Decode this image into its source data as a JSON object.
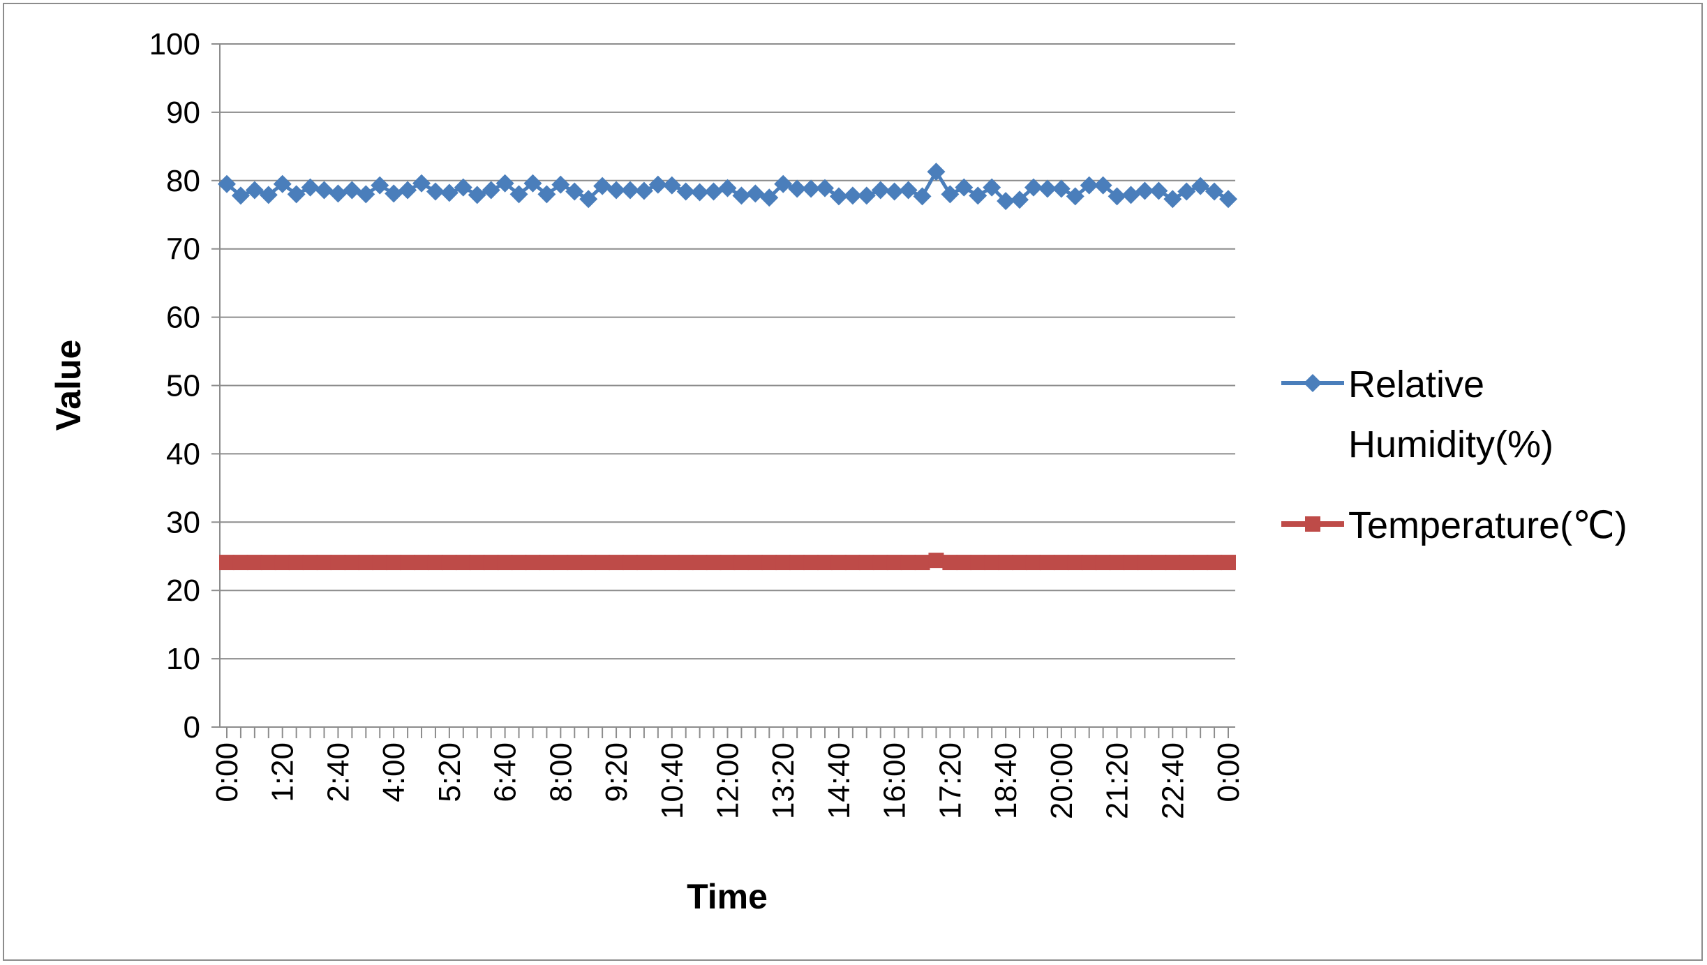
{
  "chart_data": {
    "type": "line",
    "title": "",
    "xlabel": "Time",
    "ylabel": "Value",
    "ylim": [
      0,
      100
    ],
    "yticks": [
      0,
      10,
      20,
      30,
      40,
      50,
      60,
      70,
      80,
      90,
      100
    ],
    "grid": "horizontal",
    "legend_position": "right",
    "x_tick_labels": [
      "0:00",
      "1:20",
      "2:40",
      "4:00",
      "5:20",
      "6:40",
      "8:00",
      "9:20",
      "10:40",
      "12:00",
      "13:20",
      "14:40",
      "16:00",
      "17:20",
      "18:40",
      "20:00",
      "21:20",
      "22:40",
      "0:00"
    ],
    "x_tick_every": 4,
    "x": [
      "0:00",
      "0:20",
      "0:40",
      "1:00",
      "1:20",
      "1:40",
      "2:00",
      "2:20",
      "2:40",
      "3:00",
      "3:20",
      "3:40",
      "4:00",
      "4:20",
      "4:40",
      "5:00",
      "5:20",
      "5:40",
      "6:00",
      "6:20",
      "6:40",
      "7:00",
      "7:20",
      "7:40",
      "8:00",
      "8:20",
      "8:40",
      "9:00",
      "9:20",
      "9:40",
      "10:00",
      "10:20",
      "10:40",
      "11:00",
      "11:20",
      "11:40",
      "12:00",
      "12:20",
      "12:40",
      "13:00",
      "13:20",
      "13:40",
      "14:00",
      "14:20",
      "14:40",
      "15:00",
      "15:20",
      "15:40",
      "16:00",
      "16:20",
      "16:40",
      "17:00",
      "17:20",
      "17:40",
      "18:00",
      "18:20",
      "18:40",
      "19:00",
      "19:20",
      "19:40",
      "20:00",
      "20:20",
      "20:40",
      "21:00",
      "21:20",
      "21:40",
      "22:00",
      "22:20",
      "22:40",
      "23:00",
      "23:20",
      "23:40",
      "0:00"
    ],
    "series": [
      {
        "name": "Relative Humidity(%)",
        "color": "#4a7ebb",
        "marker": "diamond",
        "values": [
          79.5,
          77.8,
          78.6,
          77.9,
          79.5,
          78.0,
          79.0,
          78.6,
          78.1,
          78.6,
          78.0,
          79.3,
          78.1,
          78.6,
          79.6,
          78.4,
          78.2,
          79.0,
          77.9,
          78.6,
          79.6,
          78.0,
          79.6,
          78.0,
          79.4,
          78.4,
          77.3,
          79.2,
          78.6,
          78.6,
          78.5,
          79.4,
          79.3,
          78.4,
          78.3,
          78.4,
          78.9,
          77.8,
          78.1,
          77.5,
          79.5,
          78.8,
          78.8,
          78.9,
          77.7,
          77.8,
          77.8,
          78.6,
          78.4,
          78.6,
          77.7,
          81.3,
          78.0,
          79.0,
          77.8,
          79.0,
          77.0,
          77.2,
          79.0,
          78.8,
          78.8,
          77.7,
          79.3,
          79.3,
          77.7,
          77.9,
          78.5,
          78.5,
          77.3,
          78.4,
          79.2,
          78.4,
          77.3
        ]
      },
      {
        "name": "Temperature(℃)",
        "color": "#be4b48",
        "marker": "square",
        "values": [
          24.1,
          24.1,
          24.1,
          24.1,
          24.1,
          24.1,
          24.1,
          24.1,
          24.1,
          24.1,
          24.1,
          24.1,
          24.1,
          24.1,
          24.1,
          24.1,
          24.1,
          24.1,
          24.1,
          24.1,
          24.1,
          24.1,
          24.1,
          24.1,
          24.1,
          24.1,
          24.1,
          24.1,
          24.1,
          24.1,
          24.1,
          24.1,
          24.1,
          24.1,
          24.1,
          24.1,
          24.1,
          24.1,
          24.1,
          24.1,
          24.1,
          24.1,
          24.1,
          24.1,
          24.1,
          24.1,
          24.1,
          24.1,
          24.1,
          24.1,
          24.1,
          24.4,
          24.1,
          24.1,
          24.1,
          24.1,
          24.1,
          24.1,
          24.1,
          24.1,
          24.1,
          24.1,
          24.1,
          24.1,
          24.1,
          24.1,
          24.1,
          24.1,
          24.1,
          24.1,
          24.1,
          24.1,
          24.1
        ]
      }
    ],
    "legend": [
      {
        "lines": [
          "Relative",
          "Humidity(%)"
        ],
        "series": 0
      },
      {
        "lines": [
          "Temperature(℃)"
        ],
        "series": 1
      }
    ]
  }
}
